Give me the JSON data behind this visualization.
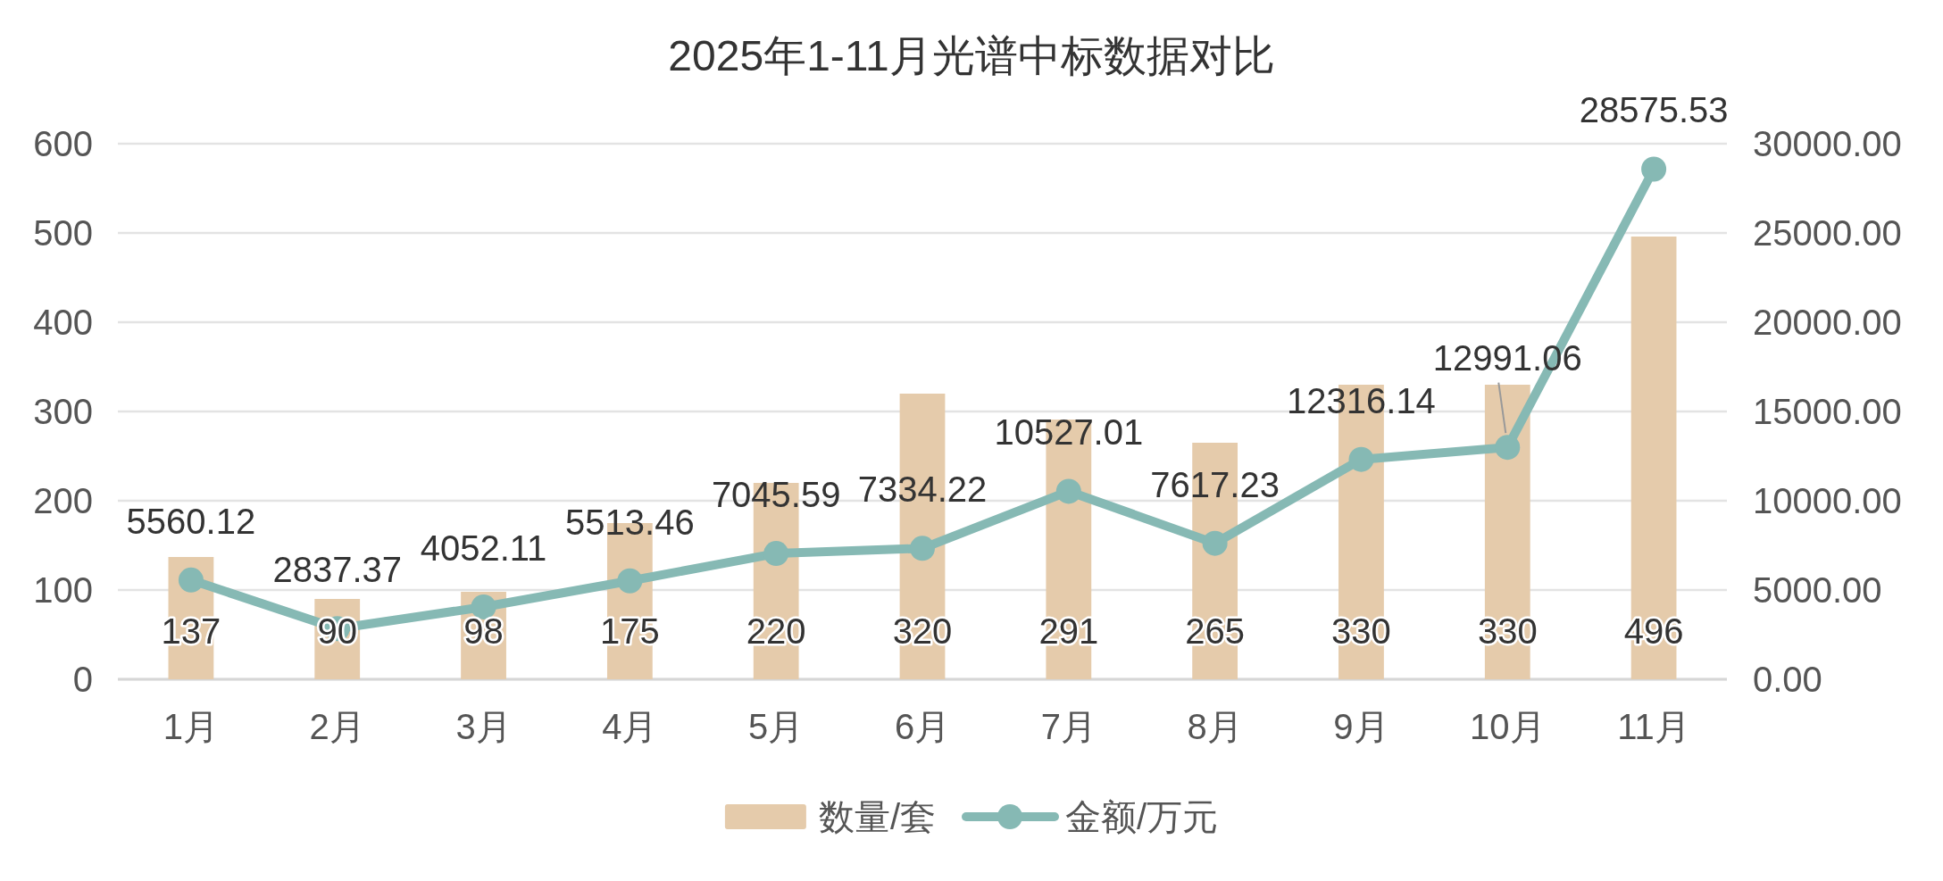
{
  "chart_data": {
    "type": "bar",
    "title": "2025年1-11月光谱中标数据对比",
    "categories": [
      "1月",
      "2月",
      "3月",
      "4月",
      "5月",
      "6月",
      "7月",
      "8月",
      "9月",
      "10月",
      "11月"
    ],
    "series": [
      {
        "name": "数量/套",
        "color": "#e5cbab",
        "values": [
          137,
          90,
          98,
          175,
          220,
          320,
          291,
          265,
          330,
          330,
          496
        ]
      },
      {
        "name": "金额/万元",
        "type": "line",
        "axis": "y2",
        "color": "#86b9b4",
        "marker": "circle",
        "line_style": "solid",
        "values": [
          5560.12,
          2837.37,
          4052.11,
          5513.46,
          7045.59,
          7334.22,
          10527.01,
          7617.23,
          12316.14,
          12991.06,
          28575.53
        ]
      }
    ],
    "ylim": [
      0,
      600
    ],
    "yticks": [
      0,
      100,
      200,
      300,
      400,
      500,
      600
    ],
    "y2lim": [
      0,
      30000
    ],
    "y2ticks": [
      {
        "value": 0,
        "label": "0.00"
      },
      {
        "value": 5000,
        "label": "5000.00"
      },
      {
        "value": 10000,
        "label": "10000.00"
      },
      {
        "value": 15000,
        "label": "15000.00"
      },
      {
        "value": 20000,
        "label": "20000.00"
      },
      {
        "value": 25000,
        "label": "25000.00"
      },
      {
        "value": 30000,
        "label": "30000.00"
      }
    ],
    "grid": "y",
    "legend": "bottom",
    "data_labels": true
  }
}
